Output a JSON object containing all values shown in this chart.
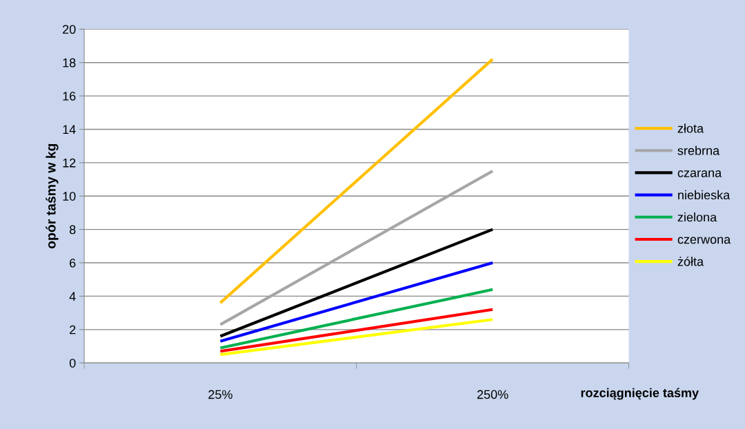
{
  "chart_data": {
    "type": "line",
    "xlabel": "rozciągnięcie taśmy",
    "ylabel": "opór taśmy w kg",
    "categories": [
      "25%",
      "250%"
    ],
    "series": [
      {
        "name": "złota",
        "color": "#ffc000",
        "values": [
          3.6,
          18.2
        ]
      },
      {
        "name": "srebrna",
        "color": "#a6a6a6",
        "values": [
          2.3,
          11.5
        ]
      },
      {
        "name": "czarana",
        "color": "#000000",
        "values": [
          1.6,
          8.0
        ]
      },
      {
        "name": "niebieska",
        "color": "#0000ff",
        "values": [
          1.3,
          6.0
        ]
      },
      {
        "name": "zielona",
        "color": "#00b050",
        "values": [
          0.9,
          4.4
        ]
      },
      {
        "name": "czerwona",
        "color": "#ff0000",
        "values": [
          0.7,
          3.2
        ]
      },
      {
        "name": "żółta",
        "color": "#ffff00",
        "values": [
          0.5,
          2.6
        ]
      }
    ],
    "ylim": [
      0,
      20
    ],
    "yticks": [
      0,
      2,
      4,
      6,
      8,
      10,
      12,
      14,
      16,
      18,
      20
    ],
    "grid": "y",
    "legend": "right",
    "marker": "none",
    "line_style": "solid"
  }
}
